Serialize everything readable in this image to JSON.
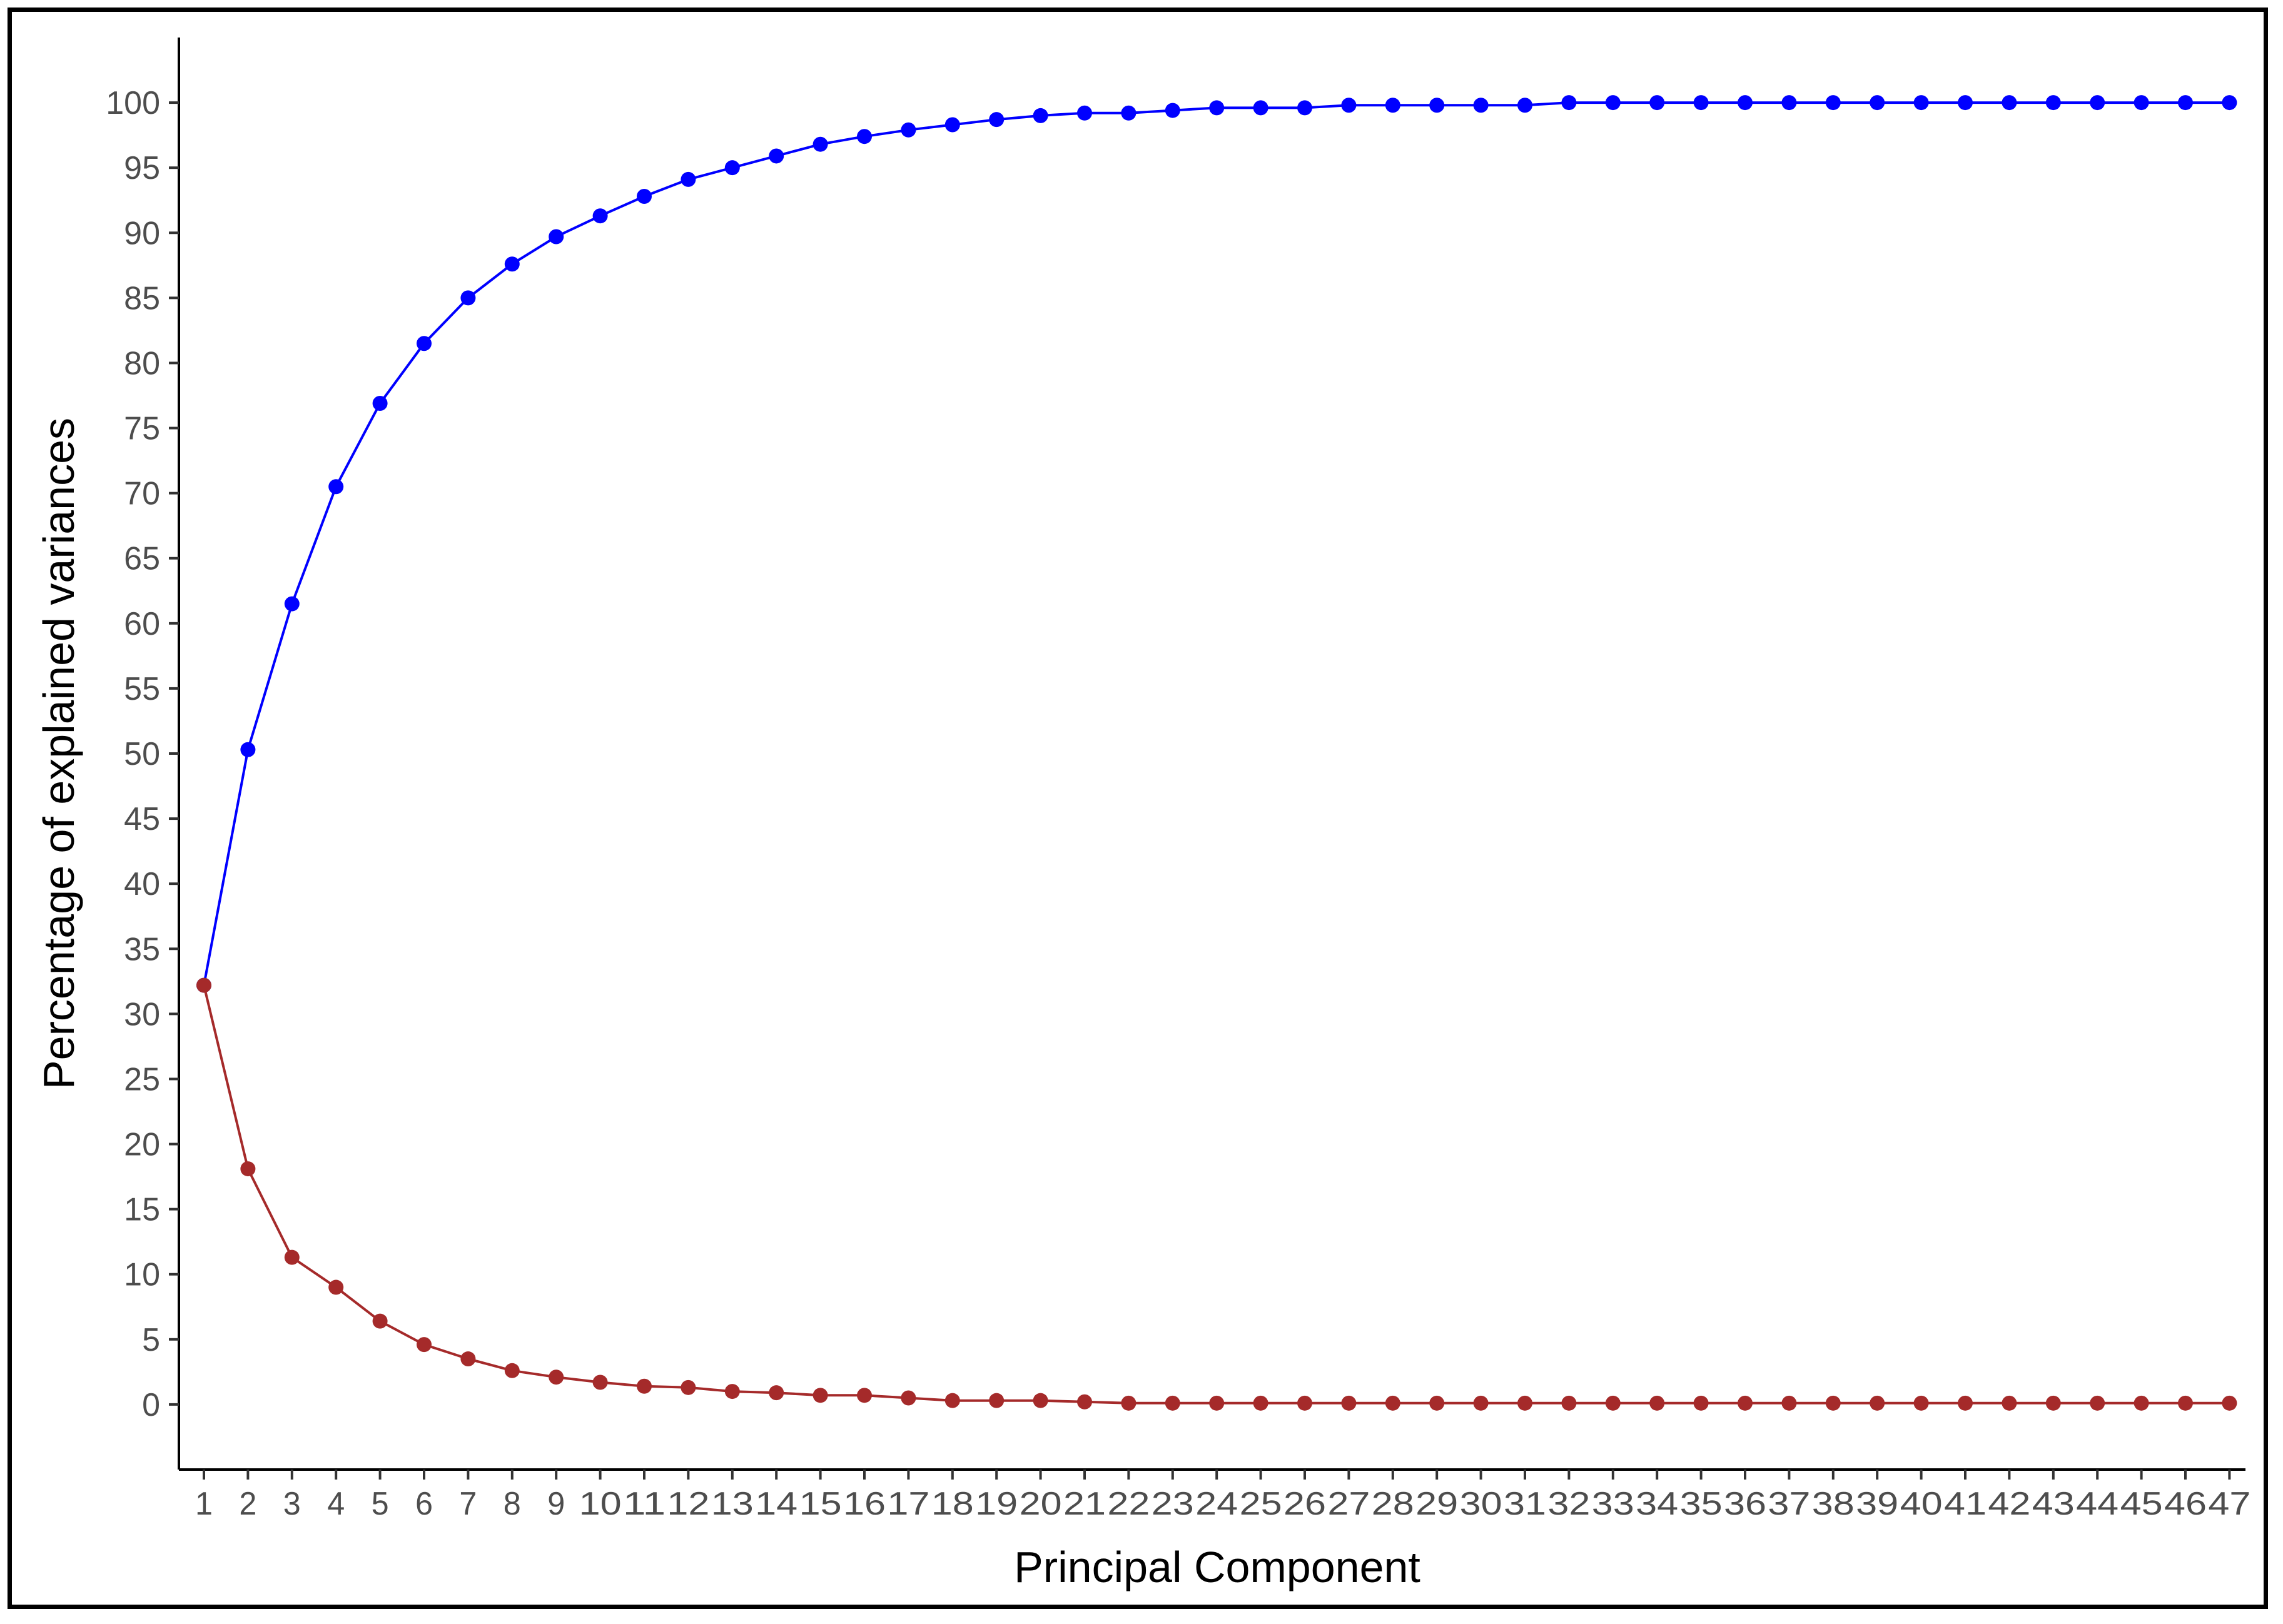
{
  "chart_data": {
    "type": "line",
    "xlabel": "Principal Component",
    "ylabel": "Percentage of explained variances",
    "x": [
      1,
      2,
      3,
      4,
      5,
      6,
      7,
      8,
      9,
      10,
      11,
      12,
      13,
      14,
      15,
      16,
      17,
      18,
      19,
      20,
      21,
      22,
      23,
      24,
      25,
      26,
      27,
      28,
      29,
      30,
      31,
      32,
      33,
      34,
      35,
      36,
      37,
      38,
      39,
      40,
      41,
      42,
      43,
      44,
      45,
      46,
      47
    ],
    "ylim": [
      -5,
      105
    ],
    "yticks": [
      0,
      5,
      10,
      15,
      20,
      25,
      30,
      35,
      40,
      45,
      50,
      55,
      60,
      65,
      70,
      75,
      80,
      85,
      90,
      95,
      100
    ],
    "grid": false,
    "legend": "none",
    "series": [
      {
        "color": "#0000ff",
        "values": [
          32.2,
          50.3,
          61.5,
          70.5,
          76.9,
          81.5,
          85.0,
          87.6,
          89.7,
          91.3,
          92.8,
          94.1,
          95.0,
          95.9,
          96.8,
          97.4,
          97.9,
          98.3,
          98.7,
          99.0,
          99.2,
          99.2,
          99.4,
          99.6,
          99.6,
          99.6,
          99.8,
          99.8,
          99.8,
          99.8,
          99.8,
          100,
          100,
          100,
          100,
          100,
          100,
          100,
          100,
          100,
          100,
          100,
          100,
          100,
          100,
          100,
          100
        ]
      },
      {
        "color": "#a52a2a",
        "values": [
          32.2,
          18.1,
          11.3,
          9.0,
          6.4,
          4.6,
          3.5,
          2.6,
          2.1,
          1.7,
          1.4,
          1.3,
          1.0,
          0.9,
          0.7,
          0.7,
          0.5,
          0.3,
          0.3,
          0.3,
          0.2,
          0.1,
          0.1,
          0.1,
          0.1,
          0.1,
          0.1,
          0.1,
          0.1,
          0.1,
          0.1,
          0.1,
          0.1,
          0.1,
          0.1,
          0.1,
          0.1,
          0.1,
          0.1,
          0.1,
          0.1,
          0.1,
          0.1,
          0.1,
          0.1,
          0.1,
          0.1
        ]
      }
    ]
  }
}
